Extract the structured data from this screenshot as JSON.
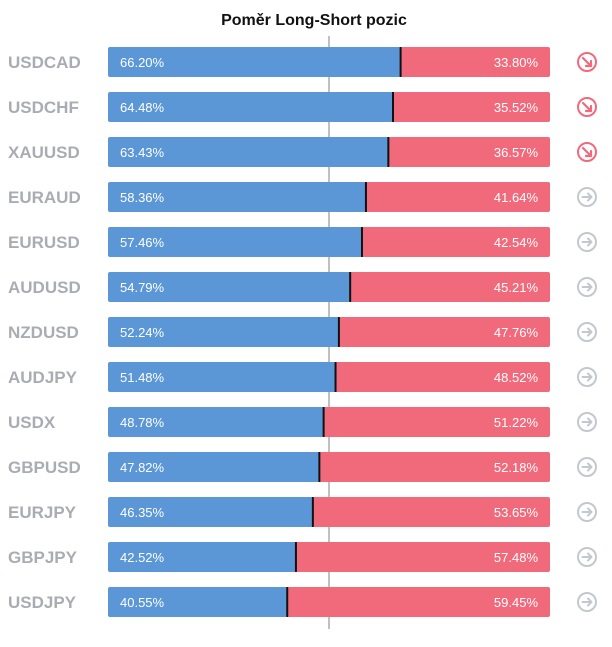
{
  "title": "Poměr Long-Short pozic",
  "colors": {
    "long": "#5b96d6",
    "short": "#f06a7c",
    "label": "#a9adb3",
    "arrow_bearish": "#f06a7c",
    "arrow_neutral": "#c3c8cf",
    "divider": "#111111",
    "center_line": "#808080"
  },
  "chart_data": {
    "type": "bar",
    "stacked": true,
    "orientation": "horizontal",
    "title": "Poměr Long-Short pozic",
    "categories": [
      "USDCAD",
      "USDCHF",
      "XAUUSD",
      "EURAUD",
      "EURUSD",
      "AUDUSD",
      "NZDUSD",
      "AUDJPY",
      "USDX",
      "GBPUSD",
      "EURJPY",
      "GBPJPY",
      "USDJPY"
    ],
    "series": [
      {
        "values": [
          66.2,
          64.48,
          63.43,
          58.36,
          57.46,
          54.79,
          52.24,
          51.48,
          48.78,
          47.82,
          46.35,
          42.52,
          40.55
        ],
        "labels": [
          "66.20%",
          "64.48%",
          "63.43%",
          "58.36%",
          "57.46%",
          "54.79%",
          "52.24%",
          "51.48%",
          "48.78%",
          "47.82%",
          "46.35%",
          "42.52%",
          "40.55%"
        ]
      },
      {
        "values": [
          33.8,
          35.52,
          36.57,
          41.64,
          42.54,
          45.21,
          47.76,
          48.52,
          51.22,
          52.18,
          53.65,
          57.48,
          59.45
        ],
        "labels": [
          "33.80%",
          "35.52%",
          "36.57%",
          "41.64%",
          "42.54%",
          "45.21%",
          "47.76%",
          "48.52%",
          "51.22%",
          "52.18%",
          "53.65%",
          "57.48%",
          "59.45%"
        ]
      }
    ],
    "signals": [
      "down",
      "down",
      "down",
      "right",
      "right",
      "right",
      "right",
      "right",
      "right",
      "right",
      "right",
      "right",
      "right"
    ],
    "xlim": [
      0,
      100
    ]
  }
}
